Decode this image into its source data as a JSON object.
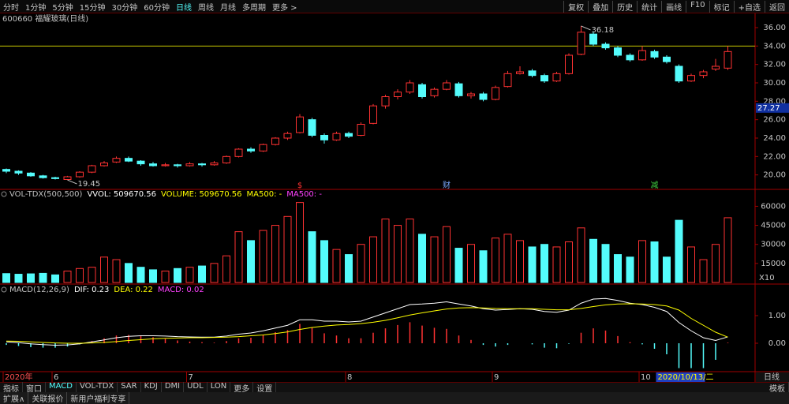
{
  "toolbar": {
    "periods": [
      "分时",
      "1分钟",
      "5分钟",
      "15分钟",
      "30分钟",
      "60分钟",
      "日线",
      "周线",
      "月线",
      "多周期",
      "更多 >"
    ],
    "active": "日线",
    "tools": [
      "复权",
      "叠加",
      "历史",
      "统计",
      "画线",
      "F10",
      "标记",
      "+自选",
      "返回"
    ]
  },
  "indicator_tabs": {
    "tabs": [
      "指标",
      "窗口",
      "MACD",
      "VOL-TDX",
      "SAR",
      "KDJ",
      "DMI",
      "UDL",
      "LON",
      "更多",
      "设置"
    ],
    "active": "MACD",
    "right": "模板"
  },
  "status_bar": [
    "扩展∧",
    "关联报价",
    "新用户福利专享"
  ],
  "period_label": "日线",
  "cursor_date": "2020/10/13/二",
  "chart_data": [
    {
      "type": "candlestick",
      "title": "600660 福耀玻璃(日线)",
      "categories": [
        "2020年",
        null,
        null,
        null,
        "6",
        null,
        null,
        null,
        null,
        null,
        null,
        null,
        null,
        null,
        null,
        "7",
        null,
        null,
        null,
        null,
        null,
        null,
        null,
        null,
        null,
        null,
        null,
        null,
        "8",
        null,
        null,
        null,
        null,
        null,
        null,
        null,
        null,
        null,
        null,
        null,
        "9",
        null,
        null,
        null,
        null,
        null,
        null,
        null,
        null,
        null,
        null,
        null,
        "10",
        null,
        null,
        null,
        null,
        null,
        null,
        null
      ],
      "open": [
        20.6,
        20.4,
        20.2,
        19.9,
        19.7,
        19.5,
        19.8,
        20.3,
        21.0,
        21.4,
        21.8,
        21.5,
        21.2,
        21.0,
        21.1,
        21.0,
        21.2,
        21.1,
        21.3,
        22.0,
        22.8,
        22.6,
        23.3,
        24.0,
        24.6,
        26.0,
        24.3,
        23.8,
        24.5,
        24.3,
        25.6,
        27.5,
        28.5,
        29.0,
        29.8,
        28.6,
        29.3,
        29.9,
        28.6,
        28.8,
        28.2,
        29.6,
        31.0,
        31.3,
        30.8,
        30.2,
        31.0,
        33.1,
        35.3,
        34.2,
        33.8,
        33.0,
        32.5,
        33.4,
        32.8,
        31.8,
        30.2,
        30.8,
        31.5,
        31.6
      ],
      "high": [
        20.7,
        20.5,
        20.3,
        20.0,
        19.8,
        19.9,
        20.4,
        21.1,
        21.5,
        22.0,
        22.0,
        21.6,
        21.4,
        21.3,
        21.2,
        21.4,
        21.3,
        21.5,
        22.1,
        22.9,
        23.0,
        23.4,
        24.1,
        24.7,
        26.6,
        26.2,
        24.5,
        24.7,
        24.7,
        25.7,
        27.7,
        28.7,
        29.3,
        30.3,
        30.0,
        29.5,
        30.3,
        30.1,
        29.0,
        29.0,
        29.7,
        31.3,
        31.8,
        31.5,
        31.0,
        31.2,
        33.2,
        36.18,
        35.6,
        34.4,
        34.0,
        33.2,
        34.0,
        33.6,
        33.0,
        32.0,
        31.0,
        31.4,
        32.6,
        34.0
      ],
      "low": [
        20.2,
        20.0,
        19.8,
        19.6,
        19.5,
        19.45,
        19.7,
        20.2,
        20.9,
        21.3,
        21.4,
        21.0,
        20.9,
        20.9,
        20.8,
        20.9,
        20.9,
        21.0,
        21.2,
        21.9,
        22.4,
        22.5,
        23.2,
        23.8,
        24.5,
        24.1,
        23.4,
        23.7,
        24.0,
        24.2,
        25.5,
        27.2,
        28.2,
        28.8,
        28.3,
        28.4,
        29.2,
        28.4,
        28.3,
        28.0,
        28.1,
        29.5,
        30.9,
        30.6,
        30.0,
        30.1,
        30.9,
        33.0,
        34.0,
        33.6,
        32.8,
        32.3,
        32.4,
        32.6,
        32.1,
        30.0,
        30.1,
        30.5,
        31.3,
        31.4
      ],
      "close": [
        20.4,
        20.2,
        19.9,
        19.7,
        19.6,
        19.8,
        20.3,
        21.0,
        21.3,
        21.8,
        21.5,
        21.2,
        21.0,
        21.1,
        21.0,
        21.2,
        21.1,
        21.3,
        22.0,
        22.8,
        22.6,
        23.3,
        24.0,
        24.5,
        26.3,
        24.3,
        23.8,
        24.5,
        24.2,
        25.5,
        27.5,
        28.5,
        29.0,
        30.0,
        28.5,
        29.3,
        30.0,
        28.6,
        28.8,
        28.2,
        29.5,
        31.0,
        31.2,
        30.8,
        30.2,
        31.0,
        33.0,
        35.5,
        34.2,
        33.8,
        33.0,
        32.5,
        33.5,
        32.8,
        32.3,
        30.2,
        30.8,
        31.2,
        31.8,
        33.4
      ],
      "up_color": "#ff3232",
      "down_color": "#54fcfc",
      "ylim": [
        18.6,
        36.6
      ],
      "yticks": [
        {
          "value": 20,
          "label": "20.00"
        },
        {
          "value": 22,
          "label": "22.00"
        },
        {
          "value": 24,
          "label": "24.00"
        },
        {
          "value": 26,
          "label": "26.00"
        },
        {
          "value": 28,
          "label": "28.00"
        },
        {
          "value": 30,
          "label": "30.00"
        },
        {
          "value": 32,
          "label": "32.00"
        },
        {
          "value": 34,
          "label": "34.00"
        },
        {
          "value": 36,
          "label": "36.00"
        }
      ],
      "hline": 34.0,
      "hline_color": "#c8c800",
      "cursor_price": 27.27,
      "event_markers": [
        null,
        null,
        null,
        null,
        null,
        null,
        null,
        null,
        null,
        null,
        null,
        null,
        null,
        null,
        null,
        null,
        null,
        null,
        null,
        null,
        null,
        null,
        null,
        null,
        {
          "label": "$",
          "color": "#ff3232"
        },
        null,
        null,
        null,
        null,
        null,
        null,
        null,
        null,
        null,
        null,
        null,
        {
          "label": "财",
          "color": "#7aa8ff"
        },
        null,
        null,
        null,
        null,
        null,
        null,
        null,
        null,
        null,
        null,
        null,
        null,
        null,
        null,
        null,
        null,
        {
          "label": "减",
          "color": "#40d040"
        },
        null,
        null,
        null,
        null,
        null,
        null
      ]
    },
    {
      "type": "bar",
      "title": "VOL-TDX(500,500)",
      "legend_items": [
        {
          "text": "VVOL: 509670.56",
          "color": "#ffffff"
        },
        {
          "text": "VOLUME: 509670.56",
          "color": "#ffff00"
        },
        {
          "text": "MA500: -",
          "color": "#ffff00"
        },
        {
          "text": "MA500: -",
          "color": "#ff40ff"
        }
      ],
      "values": [
        7000,
        6500,
        6800,
        7200,
        6000,
        9000,
        11000,
        12000,
        20000,
        18000,
        15000,
        12000,
        10000,
        9000,
        11000,
        12000,
        13000,
        15000,
        21000,
        40000,
        33000,
        41000,
        45000,
        52000,
        63000,
        40000,
        33000,
        26000,
        22000,
        30000,
        36000,
        50000,
        45000,
        50000,
        38000,
        36000,
        44000,
        27000,
        30000,
        25000,
        35000,
        38000,
        33000,
        28000,
        30000,
        28000,
        32000,
        43000,
        34000,
        30000,
        22000,
        20000,
        33000,
        32000,
        20000,
        49000,
        28000,
        18000,
        30000,
        51000
      ],
      "ylim": [
        0,
        64000
      ],
      "yticks": [
        15000,
        30000,
        45000,
        60000
      ],
      "unit_label": "X10"
    },
    {
      "type": "macd",
      "title": "MACD(12,26,9)",
      "legend_items": [
        {
          "text": "DIF: 0.23",
          "color": "#ffffff"
        },
        {
          "text": "DEA: 0.22",
          "color": "#ffff00"
        },
        {
          "text": "MACD: 0.02",
          "color": "#ff40ff"
        }
      ],
      "series": [
        {
          "color": "#ffffff",
          "values": [
            0.05,
            0.02,
            -0.02,
            -0.05,
            -0.07,
            -0.06,
            -0.02,
            0.05,
            0.12,
            0.2,
            0.25,
            0.27,
            0.27,
            0.26,
            0.24,
            0.23,
            0.22,
            0.22,
            0.26,
            0.33,
            0.37,
            0.45,
            0.55,
            0.65,
            0.85,
            0.85,
            0.8,
            0.8,
            0.77,
            0.8,
            0.95,
            1.1,
            1.25,
            1.4,
            1.42,
            1.45,
            1.5,
            1.42,
            1.35,
            1.25,
            1.2,
            1.22,
            1.25,
            1.23,
            1.15,
            1.12,
            1.2,
            1.45,
            1.6,
            1.62,
            1.55,
            1.45,
            1.4,
            1.3,
            1.15,
            0.75,
            0.45,
            0.2,
            0.1,
            0.23
          ]
        },
        {
          "color": "#ffff00",
          "values": [
            0.08,
            0.07,
            0.05,
            0.03,
            0.01,
            0.0,
            0.0,
            0.01,
            0.03,
            0.06,
            0.1,
            0.13,
            0.16,
            0.18,
            0.19,
            0.2,
            0.2,
            0.21,
            0.22,
            0.24,
            0.27,
            0.3,
            0.35,
            0.41,
            0.5,
            0.57,
            0.62,
            0.66,
            0.68,
            0.71,
            0.76,
            0.83,
            0.92,
            1.02,
            1.1,
            1.17,
            1.24,
            1.28,
            1.29,
            1.28,
            1.26,
            1.25,
            1.25,
            1.25,
            1.23,
            1.21,
            1.21,
            1.26,
            1.33,
            1.39,
            1.42,
            1.43,
            1.42,
            1.4,
            1.35,
            1.2,
            0.9,
            0.65,
            0.4,
            0.22
          ]
        },
        {
          "up_color": "#ff3232",
          "down_color": "#54fcfc",
          "values": [
            -0.06,
            -0.1,
            -0.14,
            -0.16,
            -0.16,
            -0.12,
            -0.04,
            0.08,
            0.18,
            0.28,
            0.3,
            0.28,
            0.22,
            0.16,
            0.1,
            0.06,
            0.04,
            0.02,
            0.08,
            0.18,
            0.2,
            0.3,
            0.4,
            0.48,
            0.7,
            0.56,
            0.36,
            0.28,
            0.18,
            0.18,
            0.38,
            0.54,
            0.66,
            0.76,
            0.64,
            0.56,
            0.52,
            0.28,
            0.12,
            -0.06,
            -0.12,
            -0.06,
            0,
            -0.04,
            -0.16,
            -0.18,
            -0.02,
            0.38,
            0.54,
            0.46,
            0.26,
            0.04,
            -0.04,
            -0.2,
            -0.4,
            -0.9,
            -0.9,
            -0.9,
            -0.6,
            0.02
          ]
        }
      ],
      "ylim": [
        -1.0,
        2.08
      ],
      "yticks": [
        {
          "value": 0,
          "label": "0.00"
        },
        {
          "value": 1,
          "label": "1.00"
        }
      ]
    }
  ]
}
